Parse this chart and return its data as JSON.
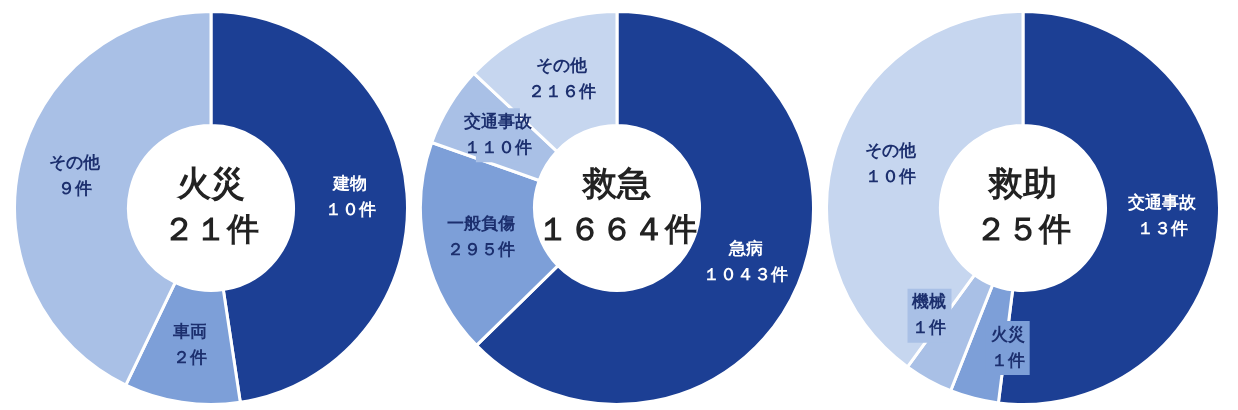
{
  "chart_data": [
    {
      "type": "donut",
      "title": "火災",
      "subtitle": "２１件",
      "categories": [
        "建物",
        "車両",
        "その他"
      ],
      "values": [
        10,
        2,
        9
      ],
      "value_labels": [
        "１０件",
        "２件",
        "９件"
      ],
      "colors": [
        "#1c3f94",
        "#7d9fd8",
        "#a9c0e6"
      ]
    },
    {
      "type": "donut",
      "title": "救急",
      "subtitle": "１６６４件",
      "categories": [
        "急病",
        "一般負傷",
        "交通事故",
        "その他"
      ],
      "values": [
        1043,
        295,
        110,
        216
      ],
      "value_labels": [
        "１０４３件",
        "２９５件",
        "１１０件",
        "２１６件"
      ],
      "colors": [
        "#1c3f94",
        "#7d9fd8",
        "#a9c0e6",
        "#c6d6ef"
      ]
    },
    {
      "type": "donut",
      "title": "救助",
      "subtitle": "２５件",
      "categories": [
        "交通事故",
        "火災",
        "機械",
        "その他"
      ],
      "values": [
        13,
        1,
        1,
        10
      ],
      "value_labels": [
        "１３件",
        "１件",
        "１件",
        "１０件"
      ],
      "colors": [
        "#1c3f94",
        "#7d9fd8",
        "#a9c0e6",
        "#c6d6ef"
      ]
    }
  ]
}
